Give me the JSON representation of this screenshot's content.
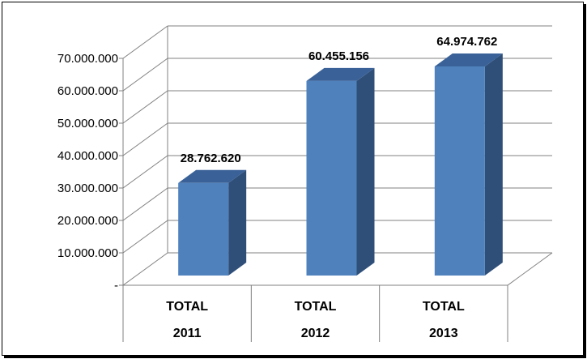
{
  "chart_data": {
    "type": "bar",
    "title": "",
    "xlabel": "",
    "ylabel": "",
    "ylim": [
      0,
      70000000
    ],
    "ytick_values": [
      0,
      10000000,
      20000000,
      30000000,
      40000000,
      50000000,
      60000000,
      70000000
    ],
    "ytick_labels": [
      "-",
      "10.000.000",
      "20.000.000",
      "30.000.000",
      "40.000.000",
      "50.000.000",
      "60.000.000",
      "70.000.000"
    ],
    "categories": [
      {
        "line1": "TOTAL",
        "line2": "2011"
      },
      {
        "line1": "TOTAL",
        "line2": "2012"
      },
      {
        "line1": "TOTAL",
        "line2": "2013"
      }
    ],
    "values": [
      28762620,
      60455156,
      64974762
    ],
    "data_labels": [
      "28.762.620",
      "60.455.156",
      "64.974.762"
    ],
    "grid": true,
    "legend": "none",
    "style": "3d-column",
    "colors": {
      "bar_front": "#4f81bd",
      "bar_side": "#2f4f79",
      "bar_top": "#3a6298",
      "grid": "#808080"
    }
  }
}
